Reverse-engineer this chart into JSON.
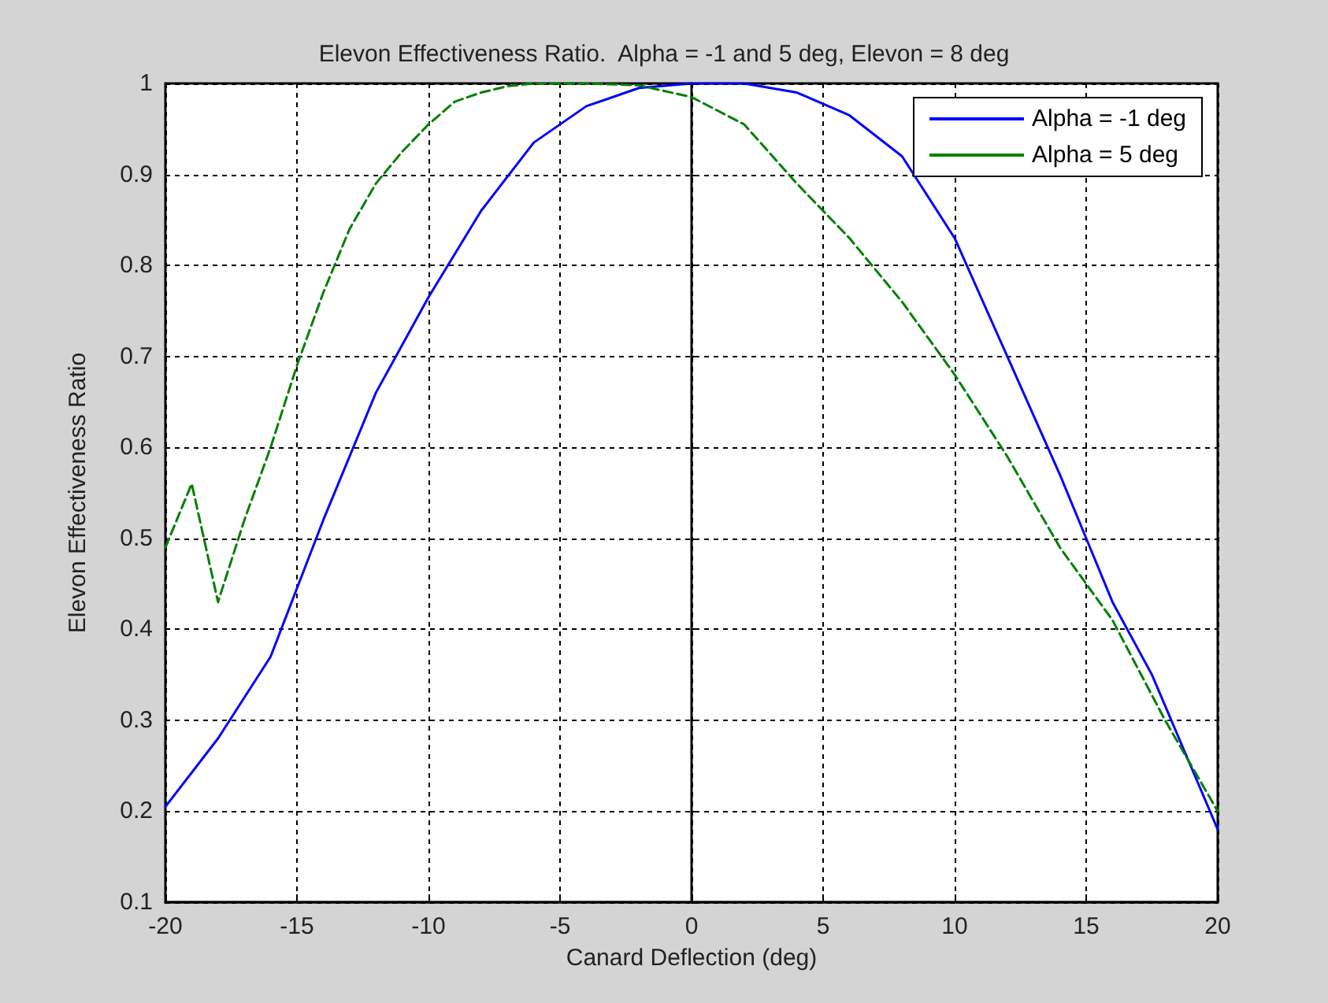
{
  "chart_data": {
    "type": "line",
    "title": "Elevon Effectiveness Ratio.  Alpha = -1 and 5 deg, Elevon = 8 deg",
    "xlabel": "Canard Deflection (deg)",
    "ylabel": "Elevon Effectiveness Ratio",
    "xlim": [
      -20,
      20
    ],
    "xticks": [
      -20,
      -15,
      -10,
      -5,
      0,
      5,
      10,
      15,
      20
    ],
    "ylim": [
      0.1,
      1
    ],
    "yticks": [
      0.1,
      0.2,
      0.3,
      0.4,
      0.5,
      0.6,
      0.7,
      0.8,
      0.9,
      1
    ],
    "grid": true,
    "legend": "top right",
    "marker": "none",
    "series": [
      {
        "name": "Alpha = -1 deg",
        "color": "#0000ff",
        "line_style": "solid",
        "x": [
          -20,
          -18,
          -16,
          -15,
          -14,
          -12,
          -10,
          -8,
          -6,
          -4,
          -2,
          0,
          2,
          4,
          6,
          8,
          10,
          12,
          14,
          15,
          16,
          17.5,
          20
        ],
        "values": [
          0.205,
          0.28,
          0.37,
          0.445,
          0.52,
          0.66,
          0.765,
          0.86,
          0.935,
          0.975,
          0.995,
          1,
          1,
          0.99,
          0.965,
          0.92,
          0.83,
          0.7,
          0.57,
          0.5,
          0.43,
          0.35,
          0.18
        ]
      },
      {
        "name": "Alpha = 5 deg",
        "color": "#008000",
        "line_style": "dashed",
        "x": [
          -20,
          -19,
          -18,
          -17,
          -16,
          -15,
          -14,
          -13,
          -12,
          -11,
          -10,
          -9,
          -8,
          -7,
          -6,
          -4,
          -2,
          0,
          2,
          4,
          6,
          8,
          10,
          12,
          14,
          16,
          18,
          20
        ],
        "values": [
          0.49,
          0.56,
          0.43,
          0.52,
          0.6,
          0.69,
          0.77,
          0.84,
          0.89,
          0.925,
          0.955,
          0.98,
          0.99,
          0.997,
          1,
          1,
          0.998,
          0.985,
          0.955,
          0.89,
          0.83,
          0.76,
          0.68,
          0.59,
          0.49,
          0.41,
          0.3,
          0.2
        ]
      }
    ]
  }
}
